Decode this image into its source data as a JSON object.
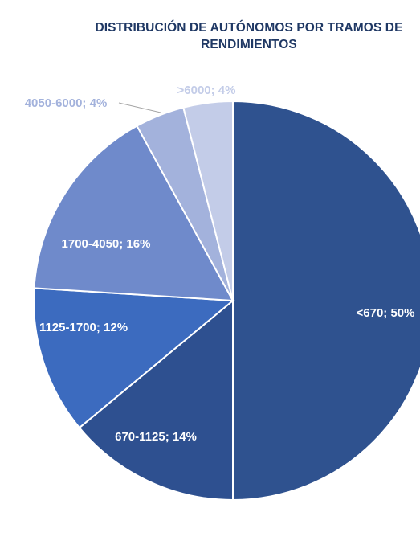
{
  "chart_data": {
    "type": "pie",
    "title": "DISTRIBUCIÓN DE AUTÓNOMOS POR TRAMOS DE RENDIMIENTOS",
    "slices": [
      {
        "category": "<670",
        "value": 50,
        "label": "<670; 50%",
        "color": "#2f528f",
        "label_color": "#ffffff"
      },
      {
        "category": "670-1125",
        "value": 14,
        "label": "670-1125; 14%",
        "color": "#2e5090",
        "label_color": "#ffffff"
      },
      {
        "category": "1125-1700",
        "value": 12,
        "label": "1125-1700; 12%",
        "color": "#3c6bbf",
        "label_color": "#ffffff"
      },
      {
        "category": "1700-4050",
        "value": 16,
        "label": "1700-4050; 16%",
        "color": "#6f8acb",
        "label_color": "#ffffff"
      },
      {
        "category": "4050-6000",
        "value": 4,
        "label": "4050-6000; 4%",
        "color": "#a3b2dc",
        "label_color": "#a3b2dc"
      },
      {
        "category": ">6000",
        "value": 4,
        "label": ">6000; 4%",
        "color": "#c3cce8",
        "label_color": "#c3cce8"
      }
    ],
    "start": "12 o'clock",
    "direction": "clockwise",
    "legend": "none"
  }
}
